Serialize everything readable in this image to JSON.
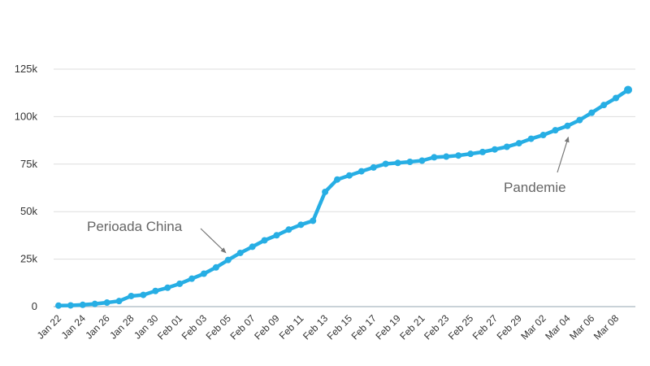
{
  "chart_data": {
    "type": "line",
    "title": "",
    "xlabel": "",
    "ylabel": "",
    "ylim": [
      0,
      125000
    ],
    "yticks": [
      0,
      25000,
      50000,
      75000,
      100000,
      125000
    ],
    "ytick_labels": [
      "0",
      "25k",
      "50k",
      "75k",
      "100k",
      "125k"
    ],
    "grid": true,
    "legend": "none",
    "color": "#27aee4",
    "x": [
      "Jan 22",
      "Jan 23",
      "Jan 24",
      "Jan 25",
      "Jan 26",
      "Jan 27",
      "Jan 28",
      "Jan 29",
      "Jan 30",
      "Jan 31",
      "Feb 01",
      "Feb 02",
      "Feb 03",
      "Feb 04",
      "Feb 05",
      "Feb 06",
      "Feb 07",
      "Feb 08",
      "Feb 09",
      "Feb 10",
      "Feb 11",
      "Feb 12",
      "Feb 13",
      "Feb 14",
      "Feb 15",
      "Feb 16",
      "Feb 17",
      "Feb 18",
      "Feb 19",
      "Feb 20",
      "Feb 21",
      "Feb 22",
      "Feb 23",
      "Feb 24",
      "Feb 25",
      "Feb 26",
      "Feb 27",
      "Feb 28",
      "Feb 29",
      "Mar 01",
      "Mar 02",
      "Mar 03",
      "Mar 04",
      "Mar 05",
      "Mar 06",
      "Mar 07",
      "Mar 08",
      "Mar 09"
    ],
    "xtick_labels": [
      "Jan 22",
      "Jan 24",
      "Jan 26",
      "Jan 28",
      "Jan 30",
      "Feb 01",
      "Feb 03",
      "Feb 05",
      "Feb 07",
      "Feb 09",
      "Feb 11",
      "Feb 13",
      "Feb 15",
      "Feb 17",
      "Feb 19",
      "Feb 21",
      "Feb 23",
      "Feb 25",
      "Feb 27",
      "Feb 29",
      "Mar 02",
      "Mar 04",
      "Mar 06",
      "Mar 08"
    ],
    "series": [
      {
        "values": [
          555,
          650,
          940,
          1430,
          2120,
          2930,
          5580,
          6170,
          8240,
          9930,
          12040,
          14690,
          17340,
          20630,
          24560,
          28270,
          31500,
          34890,
          37550,
          40550,
          43100,
          45170,
          60380,
          66900,
          69050,
          71230,
          73260,
          75150,
          75640,
          76200,
          76840,
          78600,
          78970,
          79540,
          80410,
          81390,
          82740,
          84120,
          86010,
          88370,
          90310,
          92840,
          95120,
          98190,
          102050,
          106100,
          109800,
          114100
        ]
      }
    ],
    "annotations": [
      {
        "text": "Perioada China",
        "points_to": "Feb 05"
      },
      {
        "text": "Pandemie",
        "points_to": "Mar 04"
      }
    ]
  }
}
